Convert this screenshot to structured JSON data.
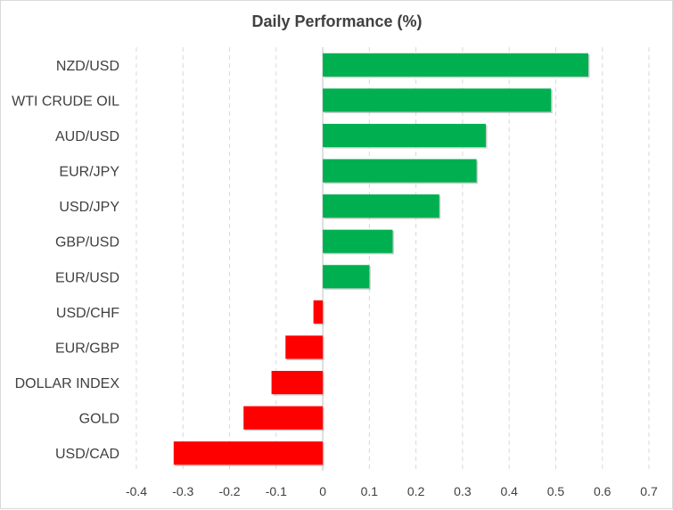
{
  "chart_data": {
    "type": "bar",
    "orientation": "horizontal",
    "title": "Daily Performance  (%)",
    "categories": [
      "NZD/USD",
      "WTI CRUDE OIL",
      "AUD/USD",
      "EUR/JPY",
      "USD/JPY",
      "GBP/USD",
      "EUR/USD",
      "USD/CHF",
      "EUR/GBP",
      "DOLLAR INDEX",
      "GOLD",
      "USD/CAD"
    ],
    "values": [
      0.57,
      0.49,
      0.35,
      0.33,
      0.25,
      0.15,
      0.1,
      -0.02,
      -0.08,
      -0.11,
      -0.17,
      -0.32
    ],
    "xticks": [
      "-0.4",
      "-0.3",
      "-0.2",
      "-0.1",
      "0",
      "0.1",
      "0.2",
      "0.3",
      "0.4",
      "0.5",
      "0.6",
      "0.7"
    ],
    "xlim": [
      -0.4,
      0.7
    ],
    "grid": "vertical dashed",
    "colors": {
      "positive": "#00b050",
      "negative": "#ff0000",
      "grid": "#d9d9d9",
      "text": "#404040"
    }
  }
}
